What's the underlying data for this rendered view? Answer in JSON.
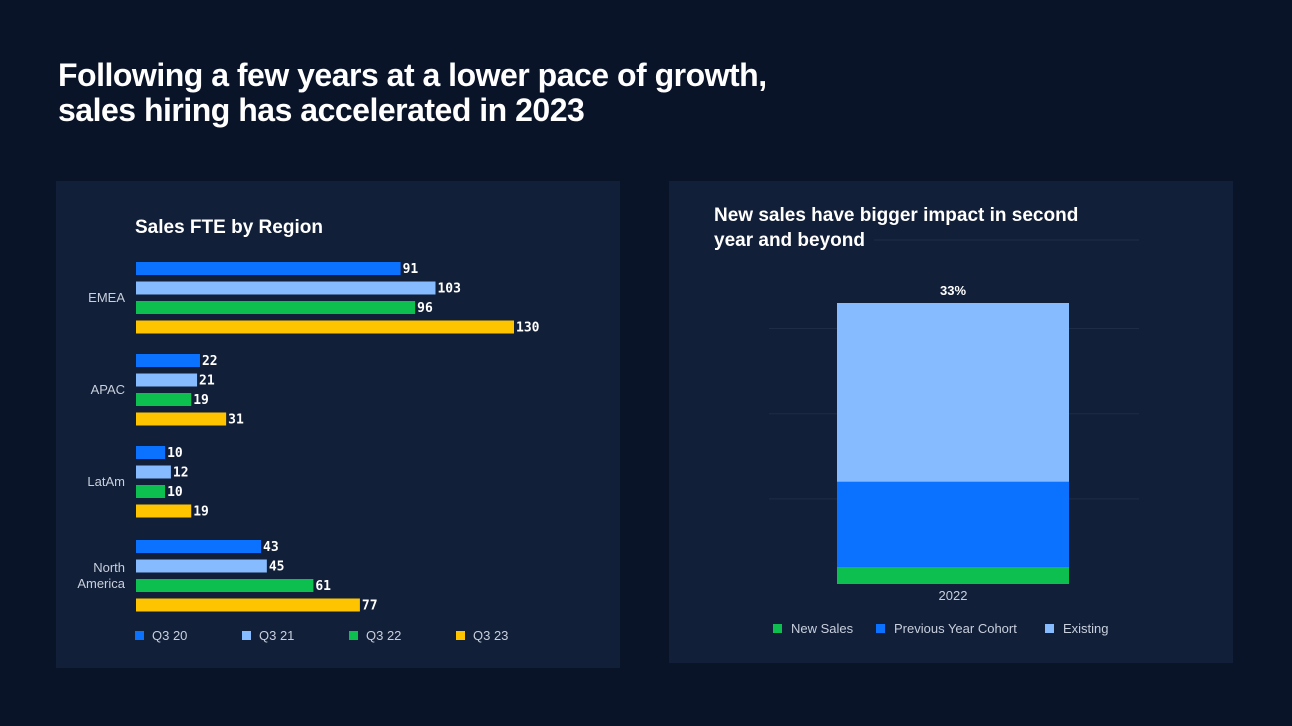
{
  "title_line1": "Following a few years at a lower pace of growth,",
  "title_line2": "sales hiring has accelerated in 2023",
  "chart_data": [
    {
      "type": "bar",
      "orientation": "horizontal",
      "title": "Sales FTE by Region",
      "categories": [
        "EMEA",
        "APAC",
        "LatAm",
        "North America"
      ],
      "series": [
        {
          "name": "Q3 20",
          "color": "#0a72ff",
          "values": [
            91,
            22,
            10,
            43
          ]
        },
        {
          "name": "Q3 21",
          "color": "#86bbff",
          "values": [
            103,
            21,
            12,
            45
          ]
        },
        {
          "name": "Q3 22",
          "color": "#0cbf4f",
          "values": [
            96,
            19,
            10,
            61
          ]
        },
        {
          "name": "Q3 23",
          "color": "#ffc400",
          "values": [
            130,
            31,
            19,
            77
          ]
        }
      ],
      "xlim": [
        0,
        130
      ],
      "legend": "bottom"
    },
    {
      "type": "bar",
      "stacked": true,
      "title_line1": "New sales have bigger impact in second",
      "title_line2": "year and beyond",
      "categories": [
        "2022"
      ],
      "total_label": "33%",
      "series": [
        {
          "name": "New Sales",
          "color": "#0cbf4f",
          "values": [
            2
          ]
        },
        {
          "name": "Previous Year Cohort",
          "color": "#0a72ff",
          "values": [
            10
          ]
        },
        {
          "name": "Existing",
          "color": "#86bbff",
          "values": [
            21
          ]
        }
      ],
      "ylim": [
        0,
        33
      ],
      "grid": true,
      "legend": "bottom"
    }
  ]
}
